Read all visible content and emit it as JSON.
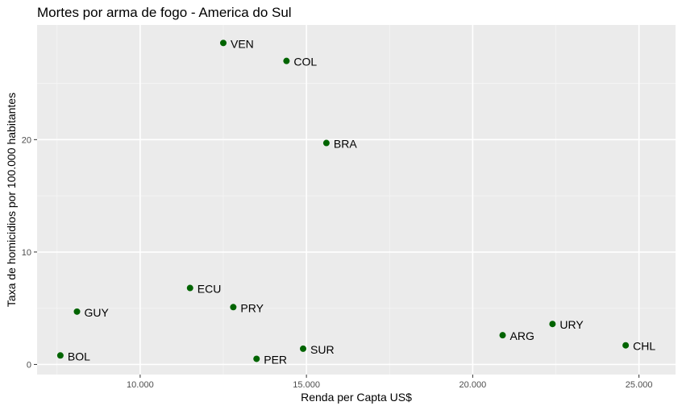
{
  "chart_data": {
    "type": "scatter",
    "title": "Mortes por arma de fogo - America do Sul",
    "xlabel": "Renda per Capta US$",
    "ylabel": "Taxa de homicidios por 100.000 habitantes",
    "xlim": [
      6900,
      26100
    ],
    "ylim": [
      -0.9,
      30.2
    ],
    "x_ticks": [
      10000,
      15000,
      20000,
      25000
    ],
    "x_tick_labels": [
      "10.000",
      "15.000",
      "20.000",
      "25.000"
    ],
    "y_ticks": [
      0,
      10,
      20
    ],
    "y_tick_labels": [
      "0",
      "10",
      "20"
    ],
    "grid": true,
    "point_color": "#006400",
    "panel_background": "#ebebeb",
    "points": [
      {
        "label": "VEN",
        "x": 12500,
        "y": 28.6
      },
      {
        "label": "COL",
        "x": 14400,
        "y": 27.0
      },
      {
        "label": "BRA",
        "x": 15600,
        "y": 19.7
      },
      {
        "label": "ECU",
        "x": 11500,
        "y": 6.8
      },
      {
        "label": "PRY",
        "x": 12800,
        "y": 5.1
      },
      {
        "label": "GUY",
        "x": 8100,
        "y": 4.7
      },
      {
        "label": "BOL",
        "x": 7600,
        "y": 0.8
      },
      {
        "label": "PER",
        "x": 13500,
        "y": 0.5
      },
      {
        "label": "SUR",
        "x": 14900,
        "y": 1.4
      },
      {
        "label": "ARG",
        "x": 20900,
        "y": 2.6
      },
      {
        "label": "URY",
        "x": 22400,
        "y": 3.6
      },
      {
        "label": "CHL",
        "x": 24600,
        "y": 1.7
      }
    ]
  }
}
